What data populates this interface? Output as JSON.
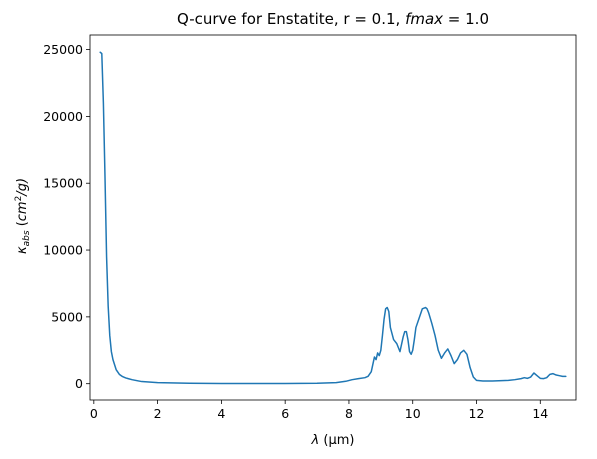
{
  "chart_data": {
    "type": "line",
    "title": "Q-curve for Enstatite, r = 0.1, fmax = 1.0",
    "title_parts": {
      "prefix": "Q-curve for Enstatite, r = 0.1, ",
      "italic": "fmax",
      "suffix": " = 1.0"
    },
    "xlabel": "λ (μm)",
    "xlabel_parts": {
      "lambda": "λ",
      "unit": " (μm)"
    },
    "ylabel": "κabs (cm²/g)",
    "ylabel_parts": {
      "kappa": "κ",
      "sub": "abs",
      "unit_open": " (",
      "unit_cm": "cm",
      "unit_sup": "2",
      "unit_rest": "/g)"
    },
    "xlim": [
      -0.12,
      15.12
    ],
    "ylim": [
      -1220,
      26090
    ],
    "xticks": [
      0,
      2,
      4,
      6,
      8,
      10,
      12,
      14
    ],
    "yticks": [
      0,
      5000,
      10000,
      15000,
      20000,
      25000
    ],
    "xtick_labels": [
      "0",
      "2",
      "4",
      "6",
      "8",
      "10",
      "12",
      "14"
    ],
    "ytick_labels": [
      "0",
      "5000",
      "10000",
      "15000",
      "20000",
      "25000"
    ],
    "grid": false,
    "legend": false,
    "series": [
      {
        "color": "#1f77b4",
        "x": [
          0.2,
          0.25,
          0.3,
          0.35,
          0.4,
          0.45,
          0.5,
          0.55,
          0.6,
          0.7,
          0.8,
          0.9,
          1.0,
          1.2,
          1.5,
          2.0,
          3.0,
          4.0,
          5.0,
          6.0,
          7.0,
          7.6,
          7.9,
          8.1,
          8.3,
          8.5,
          8.6,
          8.7,
          8.8,
          8.85,
          8.9,
          8.95,
          9.0,
          9.05,
          9.1,
          9.15,
          9.2,
          9.25,
          9.3,
          9.4,
          9.5,
          9.6,
          9.7,
          9.75,
          9.8,
          9.85,
          9.9,
          9.95,
          10.0,
          10.05,
          10.1,
          10.2,
          10.3,
          10.4,
          10.45,
          10.5,
          10.6,
          10.7,
          10.8,
          10.9,
          11.0,
          11.1,
          11.2,
          11.3,
          11.4,
          11.5,
          11.6,
          11.7,
          11.8,
          11.9,
          12.0,
          12.2,
          12.5,
          12.8,
          13.0,
          13.2,
          13.4,
          13.5,
          13.6,
          13.7,
          13.8,
          13.9,
          14.0,
          14.1,
          14.2,
          14.3,
          14.4,
          14.5,
          14.6,
          14.7,
          14.8
        ],
        "y": [
          24800,
          24700,
          21000,
          15500,
          9500,
          5800,
          3600,
          2400,
          1800,
          1050,
          700,
          530,
          430,
          300,
          160,
          80,
          30,
          10,
          10,
          10,
          30,
          80,
          180,
          300,
          380,
          450,
          550,
          900,
          2000,
          1800,
          2300,
          2100,
          2500,
          3600,
          4800,
          5600,
          5700,
          5400,
          4200,
          3300,
          3000,
          2400,
          3500,
          3900,
          3900,
          3300,
          2400,
          2200,
          2500,
          3300,
          4200,
          4900,
          5600,
          5700,
          5600,
          5300,
          4500,
          3600,
          2500,
          1900,
          2300,
          2600,
          2100,
          1500,
          1800,
          2300,
          2500,
          2200,
          1200,
          500,
          250,
          200,
          200,
          230,
          250,
          300,
          380,
          450,
          400,
          500,
          800,
          600,
          400,
          380,
          450,
          700,
          750,
          650,
          600,
          550,
          550
        ]
      }
    ]
  }
}
